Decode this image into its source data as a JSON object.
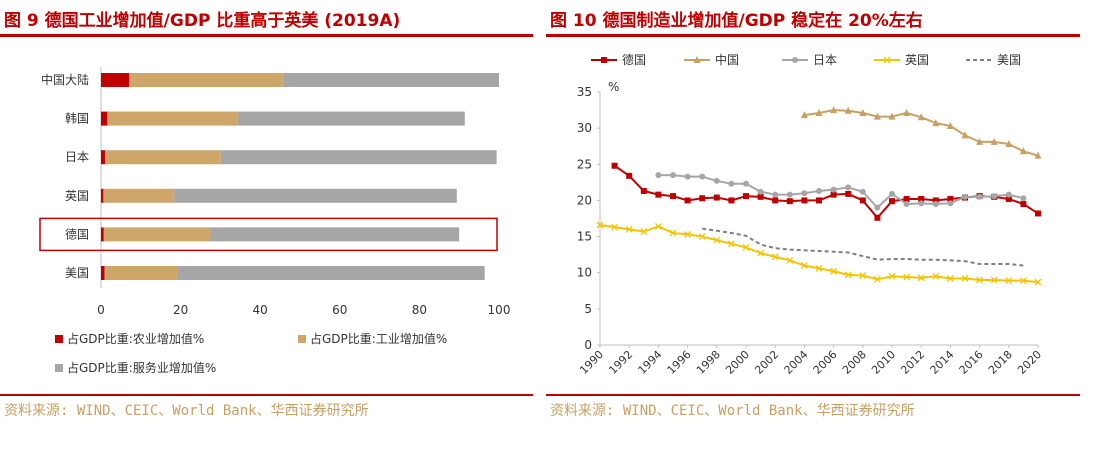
{
  "left": {
    "title": "图 9   德国工业增加值/GDP 比重高于英美 (2019A)",
    "source": "资料来源: WIND、CEIC、World Bank、华西证券研究所"
  },
  "right": {
    "title": "图 10   德国制造业增加值/GDP 稳定在 20%左右",
    "source": "资料来源: WIND、CEIC、World Bank、华西证券研究所"
  },
  "colors": {
    "accent": "#c00000",
    "source_text": "#c8a062",
    "agri": "#c00000",
    "industry": "#cfa66a",
    "services": "#a6a6a6",
    "germany": "#c00000",
    "china": "#c9a064",
    "japan": "#a6a6a6",
    "uk": "#f5c400",
    "us": "#7f7f7f"
  },
  "chart_data": [
    {
      "type": "bar",
      "orientation": "horizontal",
      "stacked": true,
      "categories": [
        "中国大陆",
        "韩国",
        "日本",
        "英国",
        "德国",
        "美国"
      ],
      "highlight": "德国",
      "series": [
        {
          "name": "占GDP比重:农业增加值%",
          "values": [
            7.1,
            1.6,
            1.0,
            0.6,
            0.7,
            0.9
          ]
        },
        {
          "name": "占GDP比重:工业增加值%",
          "values": [
            38.6,
            32.8,
            29.1,
            17.8,
            26.8,
            18.2
          ]
        },
        {
          "name": "占GDP比重:服务业增加值%",
          "values": [
            54.3,
            57.0,
            69.3,
            71.0,
            62.5,
            77.3
          ]
        }
      ],
      "xlim": [
        0,
        100
      ],
      "xticks": [
        0,
        20,
        40,
        60,
        80,
        100
      ],
      "grid": false,
      "legend": "bottom"
    },
    {
      "type": "line",
      "ylabel": "%",
      "ylim": [
        0,
        35
      ],
      "yticks": [
        0,
        5,
        10,
        15,
        20,
        25,
        30,
        35
      ],
      "xlim": [
        1990,
        2020
      ],
      "xticks": [
        "1990",
        "1992",
        "1994",
        "1996",
        "1998",
        "2000",
        "2002",
        "2004",
        "2006",
        "2008",
        "2010",
        "2012",
        "2014",
        "2016",
        "2018",
        "2020"
      ],
      "grid": false,
      "legend": "top",
      "series": [
        {
          "name": "德国",
          "marker": "square",
          "x": [
            1991,
            1992,
            1993,
            1994,
            1995,
            1996,
            1997,
            1998,
            1999,
            2000,
            2001,
            2002,
            2003,
            2004,
            2005,
            2006,
            2007,
            2008,
            2009,
            2010,
            2011,
            2012,
            2013,
            2014,
            2015,
            2016,
            2017,
            2018,
            2019,
            2020
          ],
          "y": [
            24.8,
            23.4,
            21.3,
            20.8,
            20.6,
            20.0,
            20.3,
            20.4,
            20.0,
            20.6,
            20.5,
            20.0,
            19.9,
            20.0,
            20.0,
            20.8,
            20.9,
            20.0,
            17.6,
            19.9,
            20.2,
            20.2,
            20.0,
            20.2,
            20.4,
            20.6,
            20.5,
            20.2,
            19.5,
            18.2
          ]
        },
        {
          "name": "中国",
          "marker": "triangle",
          "x": [
            2004,
            2005,
            2006,
            2007,
            2008,
            2009,
            2010,
            2011,
            2012,
            2013,
            2014,
            2015,
            2016,
            2017,
            2018,
            2019,
            2020
          ],
          "y": [
            31.8,
            32.1,
            32.5,
            32.4,
            32.1,
            31.6,
            31.6,
            32.1,
            31.5,
            30.7,
            30.3,
            29.0,
            28.1,
            28.1,
            27.8,
            26.8,
            26.2
          ]
        },
        {
          "name": "日本",
          "marker": "circle",
          "x": [
            1994,
            1995,
            1996,
            1997,
            1998,
            1999,
            2000,
            2001,
            2002,
            2003,
            2004,
            2005,
            2006,
            2007,
            2008,
            2009,
            2010,
            2011,
            2012,
            2013,
            2014,
            2015,
            2016,
            2017,
            2018,
            2019
          ],
          "y": [
            23.5,
            23.5,
            23.3,
            23.3,
            22.7,
            22.3,
            22.3,
            21.2,
            20.8,
            20.8,
            21.0,
            21.3,
            21.5,
            21.8,
            21.2,
            19.0,
            20.9,
            19.5,
            19.6,
            19.5,
            19.6,
            20.5,
            20.5,
            20.6,
            20.8,
            20.3
          ]
        },
        {
          "name": "英国",
          "marker": "x",
          "x": [
            1990,
            1991,
            1992,
            1993,
            1994,
            1995,
            1996,
            1997,
            1998,
            1999,
            2000,
            2001,
            2002,
            2003,
            2004,
            2005,
            2006,
            2007,
            2008,
            2009,
            2010,
            2011,
            2012,
            2013,
            2014,
            2015,
            2016,
            2017,
            2018,
            2019,
            2020
          ],
          "y": [
            16.6,
            16.3,
            16.0,
            15.7,
            16.4,
            15.5,
            15.3,
            15.0,
            14.5,
            14.0,
            13.5,
            12.7,
            12.2,
            11.7,
            11.0,
            10.6,
            10.2,
            9.7,
            9.6,
            9.1,
            9.5,
            9.4,
            9.3,
            9.5,
            9.2,
            9.2,
            9.0,
            9.0,
            8.9,
            8.9,
            8.7
          ]
        },
        {
          "name": "美国",
          "marker": "none",
          "dashed": true,
          "x": [
            1997,
            1998,
            1999,
            2000,
            2001,
            2002,
            2003,
            2004,
            2005,
            2006,
            2007,
            2008,
            2009,
            2010,
            2011,
            2012,
            2013,
            2014,
            2015,
            2016,
            2017,
            2018,
            2019
          ],
          "y": [
            16.1,
            15.8,
            15.5,
            15.1,
            13.9,
            13.4,
            13.2,
            13.1,
            13.0,
            12.9,
            12.8,
            12.3,
            11.8,
            11.9,
            11.9,
            11.8,
            11.8,
            11.7,
            11.6,
            11.2,
            11.2,
            11.2,
            11.0
          ]
        }
      ]
    }
  ]
}
